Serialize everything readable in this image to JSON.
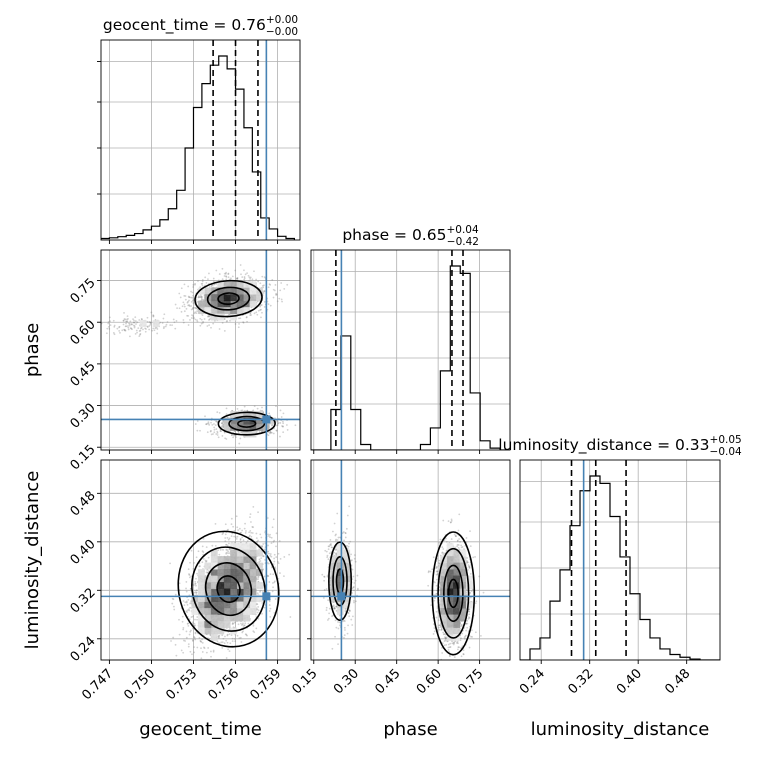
{
  "chart_data": {
    "type": "corner",
    "parameters": [
      "geocent_time",
      "phase",
      "luminosity_distance"
    ],
    "injection_values": {
      "geocent_time": 0.7582,
      "phase": 0.25,
      "luminosity_distance": 0.31
    },
    "colors": {
      "truth": "#4682b4",
      "hist": "#000000",
      "grid": "#b0b0b0",
      "scatter": "#7f7f7f"
    },
    "titles": {
      "geocent_time": {
        "label": "geocent_time = 0.76",
        "plus": "+0.00",
        "minus": "−0.00"
      },
      "phase": {
        "label": "phase = 0.65",
        "plus": "+0.04",
        "minus": "−0.42"
      },
      "luminosity_distance": {
        "label": "luminosity_distance = 0.33",
        "plus": "+0.05",
        "minus": "−0.04"
      }
    },
    "axes": {
      "geocent_time": {
        "xlabel": "geocent_time",
        "range": [
          0.7464,
          0.7606
        ],
        "ticks": [
          0.747,
          0.75,
          0.753,
          0.756,
          0.759
        ],
        "tick_labels": [
          "0.747",
          "0.750",
          "0.753",
          "0.756",
          "0.759"
        ]
      },
      "phase": {
        "ylabel": "phase",
        "xlabel": "phase",
        "range": [
          0.14,
          0.86
        ],
        "ticks": [
          0.15,
          0.3,
          0.45,
          0.6,
          0.75
        ],
        "tick_labels": [
          "0.15",
          "0.30",
          "0.45",
          "0.60",
          "0.75"
        ]
      },
      "luminosity_distance": {
        "ylabel": "luminosity_distance",
        "xlabel": "luminosity_distance",
        "range": [
          0.205,
          0.535
        ],
        "ticks": [
          0.24,
          0.32,
          0.4,
          0.48
        ],
        "tick_labels": [
          "0.24",
          "0.32",
          "0.40",
          "0.48"
        ]
      }
    },
    "quantiles": {
      "geocent_time": [
        0.7544,
        0.756,
        0.7576
      ],
      "phase": [
        0.23,
        0.65,
        0.69
      ],
      "luminosity_distance": [
        0.29,
        0.33,
        0.38
      ]
    },
    "histograms": {
      "geocent_time": {
        "bin_edges": [
          0.7464,
          0.747,
          0.7476,
          0.7482,
          0.7488,
          0.7494,
          0.75,
          0.7506,
          0.7512,
          0.7518,
          0.7524,
          0.753,
          0.7536,
          0.7542,
          0.7548,
          0.7554,
          0.756,
          0.7566,
          0.7572,
          0.7578,
          0.7584,
          0.759,
          0.7596,
          0.7602
        ],
        "counts": [
          0.008,
          0.012,
          0.018,
          0.025,
          0.035,
          0.055,
          0.075,
          0.11,
          0.17,
          0.27,
          0.5,
          0.72,
          0.85,
          0.95,
          1.0,
          0.93,
          0.82,
          0.61,
          0.37,
          0.12,
          0.06,
          0.02,
          0.008
        ]
      },
      "phase": {
        "bin_edges": [
          0.14,
          0.176,
          0.212,
          0.248,
          0.284,
          0.32,
          0.356,
          0.392,
          0.428,
          0.464,
          0.5,
          0.536,
          0.572,
          0.608,
          0.644,
          0.68,
          0.716,
          0.752,
          0.788,
          0.824,
          0.86
        ],
        "counts": [
          0.0,
          0.0,
          0.22,
          0.62,
          0.22,
          0.03,
          0.0,
          0.0,
          0.0,
          0.0,
          0.0,
          0.03,
          0.12,
          0.43,
          1.0,
          0.96,
          0.31,
          0.05,
          0.01,
          0.0
        ]
      },
      "luminosity_distance": {
        "bin_edges": [
          0.205,
          0.2215,
          0.238,
          0.2545,
          0.271,
          0.2875,
          0.304,
          0.3205,
          0.337,
          0.3535,
          0.37,
          0.3865,
          0.403,
          0.4195,
          0.436,
          0.4525,
          0.469,
          0.4855,
          0.502,
          0.5185,
          0.535
        ],
        "counts": [
          0.0,
          0.06,
          0.12,
          0.32,
          0.49,
          0.73,
          0.92,
          1.0,
          0.96,
          0.78,
          0.56,
          0.36,
          0.22,
          0.12,
          0.06,
          0.03,
          0.015,
          0.005,
          0.0,
          0.0
        ]
      }
    },
    "joint_distributions": {
      "phase_vs_geocent_time": [
        {
          "center": [
            0.7555,
            0.685
          ],
          "sigma": [
            0.0013,
            0.035
          ],
          "tilt": 0.2,
          "weight": 0.62,
          "contour_scales": [
            0.5,
            1.0,
            1.6
          ]
        },
        {
          "center": [
            0.749,
            0.59
          ],
          "sigma": [
            0.0016,
            0.018
          ],
          "tilt": 0.25,
          "weight": 0.06,
          "contour_scales": []
        },
        {
          "center": [
            0.7568,
            0.235
          ],
          "sigma": [
            0.0011,
            0.022
          ],
          "tilt": 0.05,
          "weight": 0.32,
          "contour_scales": [
            0.5,
            1.0,
            1.6
          ]
        }
      ],
      "luminosity_distance_vs_geocent_time": [
        {
          "center": [
            0.7555,
            0.322
          ],
          "sigma": [
            0.0014,
            0.038
          ],
          "tilt": 0.45,
          "weight": 1.0,
          "contour_scales": [
            0.5,
            1.0,
            1.6,
            2.2
          ]
        }
      ],
      "luminosity_distance_vs_phase": [
        {
          "center": [
            0.245,
            0.335
          ],
          "sigma": [
            0.022,
            0.035
          ],
          "tilt": 0.0,
          "weight": 0.3,
          "contour_scales": [
            0.5,
            1.0,
            1.6
          ]
        },
        {
          "center": [
            0.655,
            0.315
          ],
          "sigma": [
            0.03,
            0.04
          ],
          "tilt": 0.0,
          "weight": 0.7,
          "contour_scales": [
            0.5,
            1.0,
            1.6,
            2.2
          ]
        }
      ]
    },
    "grid": true
  }
}
